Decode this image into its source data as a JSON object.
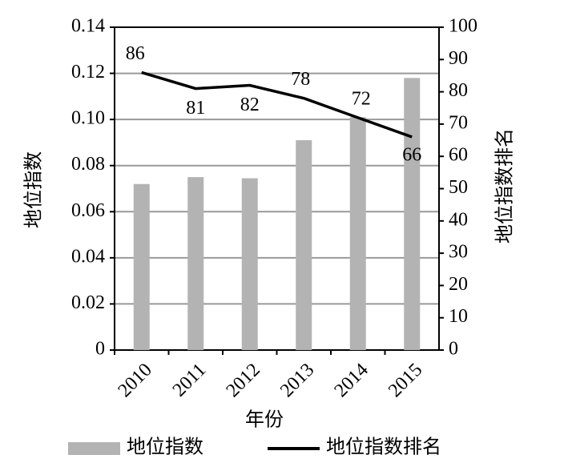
{
  "chart_data": {
    "type": "bar-line",
    "categories": [
      "2010",
      "2011",
      "2012",
      "2013",
      "2014",
      "2015"
    ],
    "x_label": "年份",
    "y_label": "地位指数",
    "y2_label": "地位指数排名",
    "series": [
      {
        "name": "地位指数",
        "type": "bar",
        "color": "#b3b3b3",
        "values": [
          0.072,
          0.075,
          0.0745,
          0.091,
          0.101,
          0.118
        ]
      },
      {
        "name": "地位指数排名",
        "type": "line",
        "axis": "y2",
        "color": "#000000",
        "values": [
          86,
          81,
          82,
          78,
          72,
          66
        ]
      }
    ],
    "ylim": [
      0,
      0.14
    ],
    "yticks": [
      0,
      0.02,
      0.04,
      0.06,
      0.08,
      {
        "value": 0.1,
        "label": "0.10"
      },
      0.12,
      0.14
    ],
    "y2lim": [
      0,
      100
    ],
    "y2ticks": [
      0,
      10,
      20,
      30,
      40,
      50,
      60,
      70,
      80,
      90,
      100
    ],
    "grid": true,
    "legend": "bottom"
  }
}
